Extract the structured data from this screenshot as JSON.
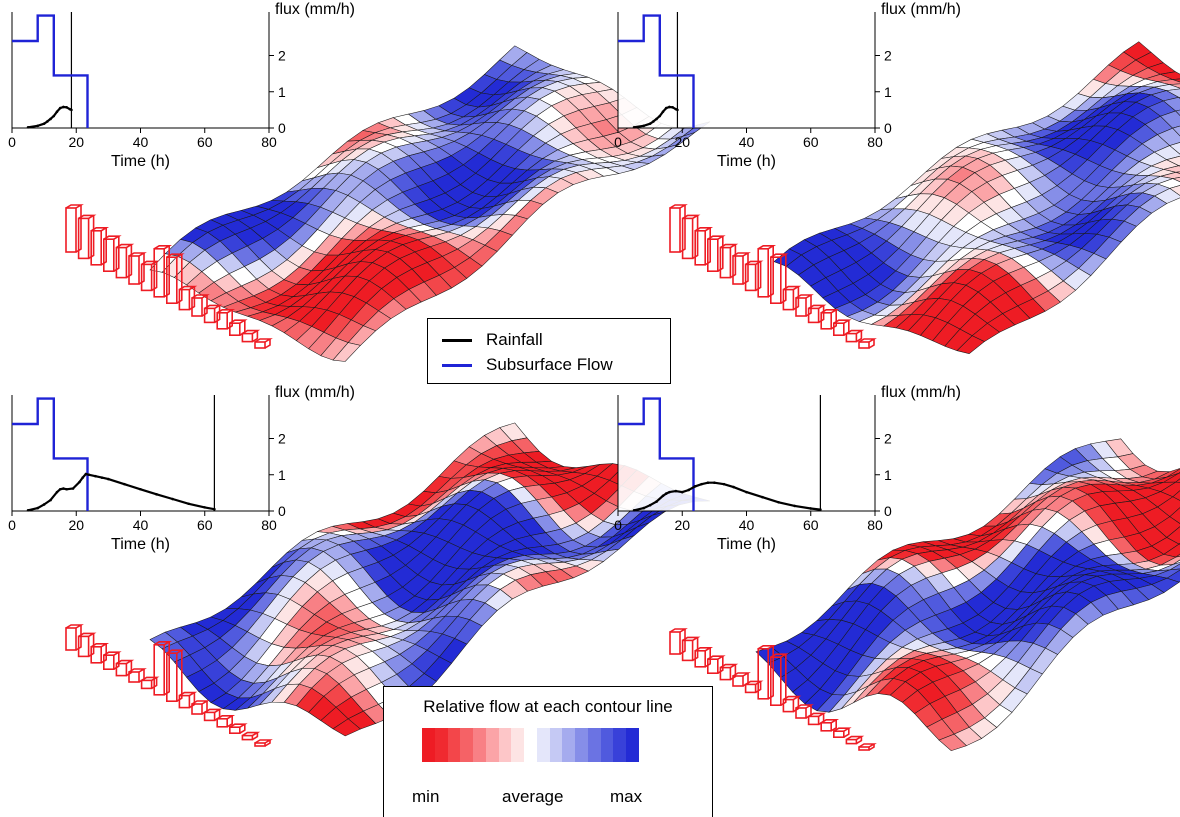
{
  "legend": {
    "series": [
      {
        "name": "Rainfall",
        "color": "#000000"
      },
      {
        "name": "Subsurface Flow",
        "color": "#1f23d6"
      }
    ],
    "colorbar": {
      "title": "Relative flow at each contour line",
      "min_label": "min",
      "mid_label": "average",
      "max_label": "max",
      "colors": [
        "#ee1c24",
        "#f02a30",
        "#f3464a",
        "#f56266",
        "#f88085",
        "#fba4a7",
        "#fdc6c8",
        "#fde4e4",
        "#ffffff",
        "#e4e6fa",
        "#c5c9f4",
        "#a5abee",
        "#868ee8",
        "#6b73e3",
        "#505ade",
        "#3841d9",
        "#232bd5"
      ]
    }
  },
  "chart_data": [
    {
      "type": "line",
      "xlabel": "Time (h)",
      "ylabel": "flux (mm/h)",
      "xlim": [
        0,
        80
      ],
      "ylim": [
        0,
        3.2
      ],
      "xticks": [
        0,
        20,
        40,
        60,
        80
      ],
      "yticks": [
        0,
        1,
        2
      ],
      "current_time": 18.5,
      "rainfall_steps": [
        [
          0,
          2.4
        ],
        [
          8,
          2.4
        ],
        [
          8,
          3.1
        ],
        [
          13,
          3.1
        ],
        [
          13,
          1.45
        ],
        [
          23.5,
          1.45
        ],
        [
          23.5,
          0
        ]
      ],
      "subsurface_flow": {
        "x": [
          5,
          8,
          10,
          11,
          12,
          13,
          14,
          15,
          16,
          17,
          18,
          18.5
        ],
        "y": [
          0.02,
          0.06,
          0.12,
          0.18,
          0.25,
          0.33,
          0.45,
          0.55,
          0.58,
          0.57,
          0.52,
          0.5
        ]
      }
    },
    {
      "type": "line",
      "xlabel": "Time (h)",
      "ylabel": "flux (mm/h)",
      "xlim": [
        0,
        80
      ],
      "ylim": [
        0,
        3.2
      ],
      "xticks": [
        0,
        20,
        40,
        60,
        80
      ],
      "yticks": [
        0,
        1,
        2
      ],
      "current_time": 18.5,
      "rainfall_steps": [
        [
          0,
          2.4
        ],
        [
          8,
          2.4
        ],
        [
          8,
          3.1
        ],
        [
          13,
          3.1
        ],
        [
          13,
          1.45
        ],
        [
          23.5,
          1.45
        ],
        [
          23.5,
          0
        ]
      ],
      "subsurface_flow": {
        "x": [
          5,
          8,
          10,
          11,
          12,
          13,
          14,
          15,
          16,
          17,
          18,
          18.5
        ],
        "y": [
          0.02,
          0.06,
          0.12,
          0.18,
          0.25,
          0.33,
          0.45,
          0.55,
          0.58,
          0.57,
          0.52,
          0.5
        ]
      }
    },
    {
      "type": "line",
      "xlabel": "Time (h)",
      "ylabel": "flux (mm/h)",
      "xlim": [
        0,
        80
      ],
      "ylim": [
        0,
        3.2
      ],
      "xticks": [
        0,
        20,
        40,
        60,
        80
      ],
      "yticks": [
        0,
        1,
        2
      ],
      "current_time": 63,
      "rainfall_steps": [
        [
          0,
          2.4
        ],
        [
          8,
          2.4
        ],
        [
          8,
          3.1
        ],
        [
          13,
          3.1
        ],
        [
          13,
          1.45
        ],
        [
          23.5,
          1.45
        ],
        [
          23.5,
          0
        ]
      ],
      "subsurface_flow": {
        "x": [
          5,
          8,
          10,
          12,
          14,
          15,
          16,
          17,
          19,
          21,
          22,
          23,
          24,
          26,
          28,
          30,
          35,
          40,
          45,
          50,
          55,
          60,
          63
        ],
        "y": [
          0.02,
          0.08,
          0.18,
          0.3,
          0.52,
          0.6,
          0.62,
          0.6,
          0.62,
          0.8,
          0.92,
          1.02,
          1.0,
          0.96,
          0.92,
          0.88,
          0.74,
          0.6,
          0.46,
          0.33,
          0.2,
          0.1,
          0.05
        ]
      }
    },
    {
      "type": "line",
      "xlabel": "Time (h)",
      "ylabel": "flux (mm/h)",
      "xlim": [
        0,
        80
      ],
      "ylim": [
        0,
        3.2
      ],
      "xticks": [
        0,
        20,
        40,
        60,
        80
      ],
      "yticks": [
        0,
        1,
        2
      ],
      "current_time": 63,
      "rainfall_steps": [
        [
          0,
          2.4
        ],
        [
          8,
          2.4
        ],
        [
          8,
          3.1
        ],
        [
          13,
          3.1
        ],
        [
          13,
          1.45
        ],
        [
          23.5,
          1.45
        ],
        [
          23.5,
          0
        ]
      ],
      "subsurface_flow": {
        "x": [
          5,
          8,
          10,
          12,
          14,
          15,
          16,
          18,
          20,
          22,
          24,
          26,
          28,
          30,
          33,
          36,
          40,
          45,
          50,
          55,
          60,
          63
        ],
        "y": [
          0.02,
          0.08,
          0.16,
          0.26,
          0.42,
          0.48,
          0.52,
          0.55,
          0.52,
          0.58,
          0.68,
          0.74,
          0.78,
          0.78,
          0.74,
          0.66,
          0.52,
          0.38,
          0.24,
          0.14,
          0.07,
          0.04
        ]
      }
    }
  ]
}
